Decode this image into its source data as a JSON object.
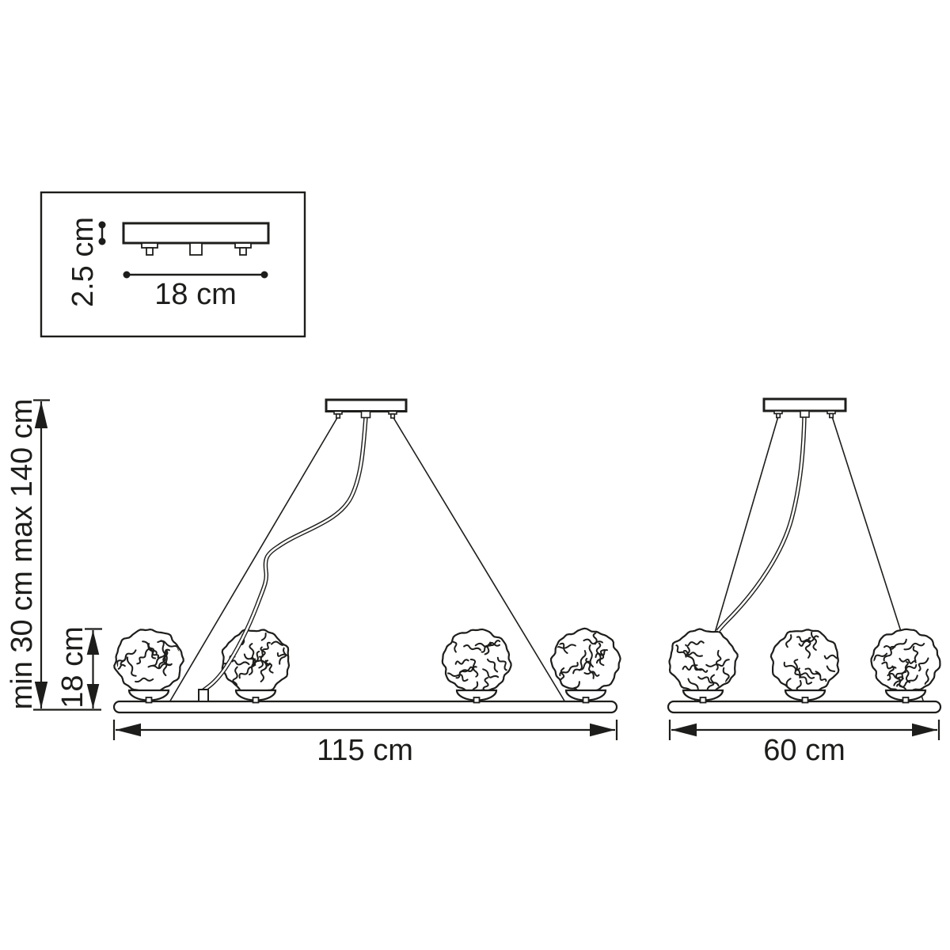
{
  "inset": {
    "height_label": "2.5 cm",
    "width_label": "18 cm"
  },
  "left_dimensions": {
    "suspension_label": "min 30 cm max 140 cm",
    "shade_label": "18 cm"
  },
  "pendant_large": {
    "width_label": "115 cm",
    "shade_count": 4
  },
  "pendant_small": {
    "width_label": "60 cm",
    "shade_count": 3
  },
  "colors": {
    "line": "#1d1d1b",
    "background": "#ffffff"
  }
}
